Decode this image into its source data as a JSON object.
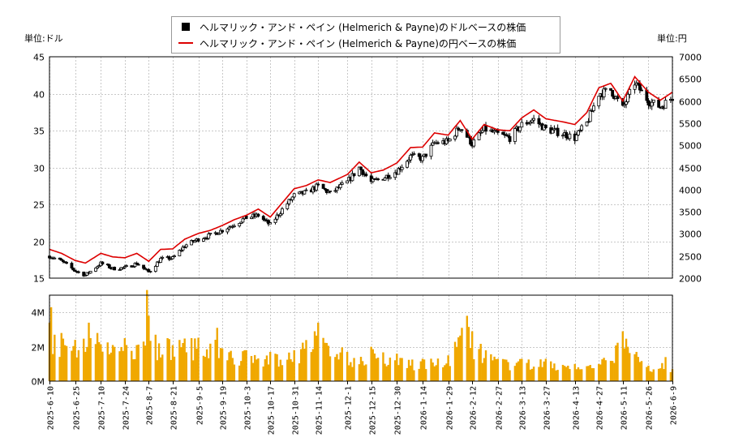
{
  "legend": {
    "usd": "ヘルマリック・アンド・ペイン (Helmerich & Payne)のドルベースの株価",
    "jpy": "ヘルマリック・アンド・ペイン (Helmerich & Payne)の円ベースの株価"
  },
  "units": {
    "left": "単位:ドル",
    "right": "単位:円"
  },
  "colors": {
    "candle": "#000000",
    "yen_line": "#dd0000",
    "volume": "#f0a800",
    "grid": "#c8c8c8"
  },
  "chart_data": [
    {
      "type": "candlestick",
      "name": "price",
      "ylim_left": [
        15,
        45
      ],
      "yticks_left": [
        15,
        20,
        25,
        30,
        35,
        40,
        45
      ],
      "ylim_right": [
        2000,
        7000
      ],
      "yticks_right": [
        2000,
        2500,
        3000,
        3500,
        4000,
        4500,
        5000,
        5500,
        6000,
        6500,
        7000
      ],
      "date_range": [
        "2025-06-10",
        "2026-06-09"
      ],
      "xticks": [
        "2025-6-10",
        "2025-6-25",
        "2025-7-10",
        "2025-7-24",
        "2025-8-7",
        "2025-8-21",
        "2025-9-5",
        "2025-9-19",
        "2025-10-3",
        "2025-10-17",
        "2025-10-31",
        "2025-11-14",
        "2025-12-1",
        "2025-12-15",
        "2025-12-30",
        "2026-1-14",
        "2026-1-29",
        "2026-2-12",
        "2026-2-27",
        "2026-3-13",
        "2026-3-27",
        "2026-4-13",
        "2026-4-27",
        "2026-5-11",
        "2026-5-26",
        "2026-6-9"
      ],
      "usd_close_points": [
        {
          "date": "2025-06-10",
          "value": 18.0
        },
        {
          "date": "2025-06-17",
          "value": 17.3
        },
        {
          "date": "2025-06-25",
          "value": 16.0
        },
        {
          "date": "2025-07-01",
          "value": 15.4
        },
        {
          "date": "2025-07-10",
          "value": 17.0
        },
        {
          "date": "2025-07-17",
          "value": 16.3
        },
        {
          "date": "2025-07-24",
          "value": 16.4
        },
        {
          "date": "2025-07-31",
          "value": 17.0
        },
        {
          "date": "2025-08-07",
          "value": 15.8
        },
        {
          "date": "2025-08-14",
          "value": 17.6
        },
        {
          "date": "2025-08-21",
          "value": 17.7
        },
        {
          "date": "2025-08-28",
          "value": 19.4
        },
        {
          "date": "2025-09-05",
          "value": 20.3
        },
        {
          "date": "2025-09-12",
          "value": 20.8
        },
        {
          "date": "2025-09-19",
          "value": 21.5
        },
        {
          "date": "2025-09-26",
          "value": 22.3
        },
        {
          "date": "2025-10-03",
          "value": 23.2
        },
        {
          "date": "2025-10-10",
          "value": 23.5
        },
        {
          "date": "2025-10-17",
          "value": 22.2
        },
        {
          "date": "2025-10-24",
          "value": 24.3
        },
        {
          "date": "2025-10-31",
          "value": 26.2
        },
        {
          "date": "2025-11-07",
          "value": 26.6
        },
        {
          "date": "2025-11-14",
          "value": 27.5
        },
        {
          "date": "2025-11-21",
          "value": 26.5
        },
        {
          "date": "2025-12-01",
          "value": 28.0
        },
        {
          "date": "2025-12-08",
          "value": 30.0
        },
        {
          "date": "2025-12-15",
          "value": 28.0
        },
        {
          "date": "2025-12-22",
          "value": 28.6
        },
        {
          "date": "2025-12-30",
          "value": 29.5
        },
        {
          "date": "2026-01-07",
          "value": 31.5
        },
        {
          "date": "2026-01-14",
          "value": 31.2
        },
        {
          "date": "2026-01-21",
          "value": 33.3
        },
        {
          "date": "2026-01-29",
          "value": 33.5
        },
        {
          "date": "2026-02-05",
          "value": 35.5
        },
        {
          "date": "2026-02-12",
          "value": 33.2
        },
        {
          "date": "2026-02-19",
          "value": 35.2
        },
        {
          "date": "2026-02-27",
          "value": 34.5
        },
        {
          "date": "2026-03-06",
          "value": 34.0
        },
        {
          "date": "2026-03-13",
          "value": 35.8
        },
        {
          "date": "2026-03-20",
          "value": 36.5
        },
        {
          "date": "2026-03-27",
          "value": 35.2
        },
        {
          "date": "2026-04-06",
          "value": 34.6
        },
        {
          "date": "2026-04-13",
          "value": 34.0
        },
        {
          "date": "2026-04-20",
          "value": 36.0
        },
        {
          "date": "2026-04-27",
          "value": 40.0
        },
        {
          "date": "2026-05-04",
          "value": 40.5
        },
        {
          "date": "2026-05-11",
          "value": 38.0
        },
        {
          "date": "2026-05-18",
          "value": 41.5
        },
        {
          "date": "2026-05-26",
          "value": 39.0
        },
        {
          "date": "2026-06-02",
          "value": 38.2
        },
        {
          "date": "2026-06-09",
          "value": 39.5
        }
      ],
      "jpy_line_points": [
        {
          "date": "2025-06-10",
          "value": 2650
        },
        {
          "date": "2025-06-17",
          "value": 2560
        },
        {
          "date": "2025-06-25",
          "value": 2400
        },
        {
          "date": "2025-07-01",
          "value": 2340
        },
        {
          "date": "2025-07-10",
          "value": 2560
        },
        {
          "date": "2025-07-17",
          "value": 2480
        },
        {
          "date": "2025-07-24",
          "value": 2460
        },
        {
          "date": "2025-07-31",
          "value": 2560
        },
        {
          "date": "2025-08-07",
          "value": 2380
        },
        {
          "date": "2025-08-14",
          "value": 2650
        },
        {
          "date": "2025-08-21",
          "value": 2660
        },
        {
          "date": "2025-08-28",
          "value": 2880
        },
        {
          "date": "2025-09-05",
          "value": 3010
        },
        {
          "date": "2025-09-12",
          "value": 3080
        },
        {
          "date": "2025-09-19",
          "value": 3190
        },
        {
          "date": "2025-09-26",
          "value": 3320
        },
        {
          "date": "2025-10-03",
          "value": 3420
        },
        {
          "date": "2025-10-10",
          "value": 3560
        },
        {
          "date": "2025-10-17",
          "value": 3380
        },
        {
          "date": "2025-10-24",
          "value": 3700
        },
        {
          "date": "2025-10-31",
          "value": 4020
        },
        {
          "date": "2025-11-07",
          "value": 4090
        },
        {
          "date": "2025-11-14",
          "value": 4220
        },
        {
          "date": "2025-11-21",
          "value": 4160
        },
        {
          "date": "2025-12-01",
          "value": 4340
        },
        {
          "date": "2025-12-08",
          "value": 4620
        },
        {
          "date": "2025-12-15",
          "value": 4380
        },
        {
          "date": "2025-12-22",
          "value": 4440
        },
        {
          "date": "2025-12-30",
          "value": 4600
        },
        {
          "date": "2026-01-07",
          "value": 4950
        },
        {
          "date": "2026-01-14",
          "value": 4960
        },
        {
          "date": "2026-01-21",
          "value": 5280
        },
        {
          "date": "2026-01-29",
          "value": 5230
        },
        {
          "date": "2026-02-05",
          "value": 5560
        },
        {
          "date": "2026-02-12",
          "value": 5140
        },
        {
          "date": "2026-02-19",
          "value": 5470
        },
        {
          "date": "2026-02-27",
          "value": 5350
        },
        {
          "date": "2026-03-06",
          "value": 5330
        },
        {
          "date": "2026-03-13",
          "value": 5620
        },
        {
          "date": "2026-03-20",
          "value": 5800
        },
        {
          "date": "2026-03-27",
          "value": 5600
        },
        {
          "date": "2026-04-06",
          "value": 5530
        },
        {
          "date": "2026-04-13",
          "value": 5470
        },
        {
          "date": "2026-04-20",
          "value": 5740
        },
        {
          "date": "2026-04-27",
          "value": 6300
        },
        {
          "date": "2026-05-04",
          "value": 6400
        },
        {
          "date": "2026-05-11",
          "value": 6000
        },
        {
          "date": "2026-05-18",
          "value": 6550
        },
        {
          "date": "2026-05-26",
          "value": 6200
        },
        {
          "date": "2026-06-02",
          "value": 6020
        },
        {
          "date": "2026-06-09",
          "value": 6200
        }
      ]
    },
    {
      "type": "bar",
      "name": "volume",
      "ylim": [
        0,
        5000000
      ],
      "yticks": [
        "0M",
        "2M",
        "4M"
      ],
      "points": [
        {
          "date": "2025-06-10",
          "value": 3400000
        },
        {
          "date": "2025-06-11",
          "value": 4300000
        },
        {
          "date": "2025-06-13",
          "value": 2700000
        },
        {
          "date": "2025-06-17",
          "value": 2800000
        },
        {
          "date": "2025-06-25",
          "value": 2400000
        },
        {
          "date": "2025-07-03",
          "value": 3400000
        },
        {
          "date": "2025-07-08",
          "value": 2800000
        },
        {
          "date": "2025-07-17",
          "value": 2100000
        },
        {
          "date": "2025-07-24",
          "value": 2500000
        },
        {
          "date": "2025-08-04",
          "value": 2300000
        },
        {
          "date": "2025-08-06",
          "value": 5300000
        },
        {
          "date": "2025-08-07",
          "value": 3800000
        },
        {
          "date": "2025-08-11",
          "value": 2700000
        },
        {
          "date": "2025-08-18",
          "value": 2500000
        },
        {
          "date": "2025-09-01",
          "value": 2500000
        },
        {
          "date": "2025-09-16",
          "value": 3100000
        },
        {
          "date": "2025-09-19",
          "value": 1900000
        },
        {
          "date": "2025-10-03",
          "value": 1800000
        },
        {
          "date": "2025-10-17",
          "value": 1700000
        },
        {
          "date": "2025-10-31",
          "value": 1800000
        },
        {
          "date": "2025-11-12",
          "value": 2900000
        },
        {
          "date": "2025-11-14",
          "value": 3400000
        },
        {
          "date": "2025-12-01",
          "value": 1700000
        },
        {
          "date": "2025-12-15",
          "value": 2000000
        },
        {
          "date": "2025-12-30",
          "value": 1600000
        },
        {
          "date": "2026-01-14",
          "value": 1300000
        },
        {
          "date": "2026-01-29",
          "value": 1500000
        },
        {
          "date": "2026-02-06",
          "value": 3100000
        },
        {
          "date": "2026-02-09",
          "value": 3800000
        },
        {
          "date": "2026-02-12",
          "value": 2900000
        },
        {
          "date": "2026-02-27",
          "value": 1300000
        },
        {
          "date": "2026-03-13",
          "value": 1300000
        },
        {
          "date": "2026-03-27",
          "value": 1300000
        },
        {
          "date": "2026-04-13",
          "value": 1000000
        },
        {
          "date": "2026-04-27",
          "value": 1000000
        },
        {
          "date": "2026-05-11",
          "value": 2900000
        },
        {
          "date": "2026-05-19",
          "value": 1700000
        },
        {
          "date": "2026-05-26",
          "value": 900000
        },
        {
          "date": "2026-06-05",
          "value": 1400000
        },
        {
          "date": "2026-06-09",
          "value": 700000
        }
      ]
    }
  ]
}
